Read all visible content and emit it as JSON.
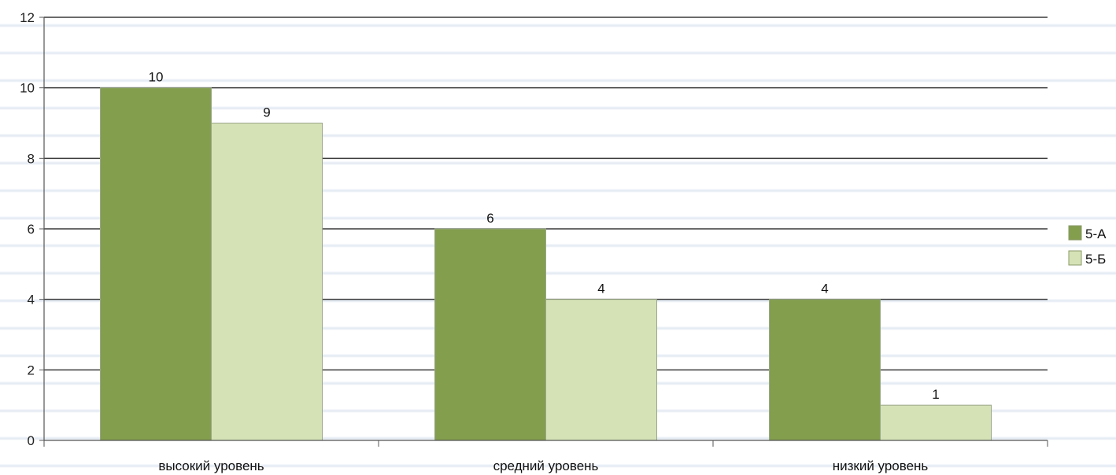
{
  "chart_data": {
    "type": "bar",
    "categories": [
      "высокий уровень",
      "средний уровень",
      "низкий уровень"
    ],
    "series": [
      {
        "name": "5-А",
        "values": [
          10,
          6,
          4
        ],
        "color": "#839e4d"
      },
      {
        "name": "5-Б",
        "values": [
          9,
          4,
          1
        ],
        "color": "#d5e2b6"
      }
    ],
    "ylim": [
      0,
      12
    ],
    "yticks": [
      0,
      2,
      4,
      6,
      8,
      10,
      12
    ],
    "grid": true,
    "legend_position": "right",
    "data_labels": true
  }
}
